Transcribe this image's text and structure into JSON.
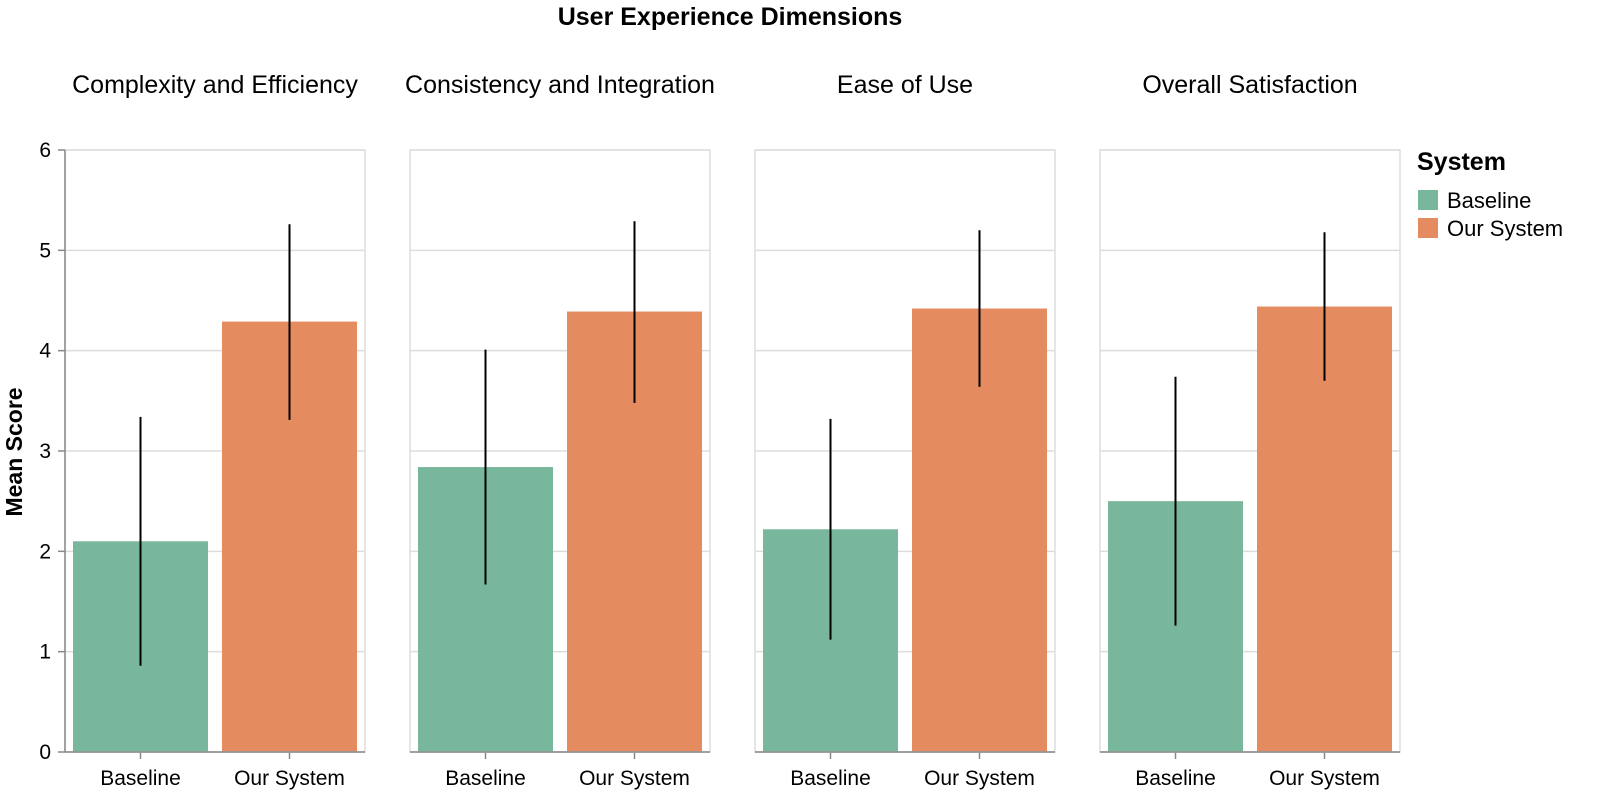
{
  "chart_data": {
    "type": "bar",
    "title": "User Experience Dimensions",
    "ylabel": "Mean Score",
    "ylim": [
      0,
      6
    ],
    "yticks": [
      0,
      1,
      2,
      3,
      4,
      5,
      6
    ],
    "grid": true,
    "legend": {
      "title": "System",
      "placement": "right",
      "entries": [
        "Baseline",
        "Our System"
      ]
    },
    "colors": {
      "Baseline": "#79b79c",
      "Our System": "#e48b60",
      "error_bar": "#000000",
      "grid": "#dddddd"
    },
    "categories": [
      "Baseline",
      "Our System"
    ],
    "facets": [
      {
        "name": "Complexity and Efficiency",
        "values": [
          2.1,
          4.29
        ],
        "error_low": [
          0.86,
          3.31
        ],
        "error_high": [
          3.34,
          5.26
        ]
      },
      {
        "name": "Consistency and Integration",
        "values": [
          2.84,
          4.39
        ],
        "error_low": [
          1.67,
          3.48
        ],
        "error_high": [
          4.01,
          5.29
        ]
      },
      {
        "name": "Ease of Use",
        "values": [
          2.22,
          4.42
        ],
        "error_low": [
          1.12,
          3.64
        ],
        "error_high": [
          3.32,
          5.2
        ]
      },
      {
        "name": "Overall Satisfaction",
        "values": [
          2.5,
          4.44
        ],
        "error_low": [
          1.26,
          3.7
        ],
        "error_high": [
          3.74,
          5.18
        ]
      }
    ]
  }
}
